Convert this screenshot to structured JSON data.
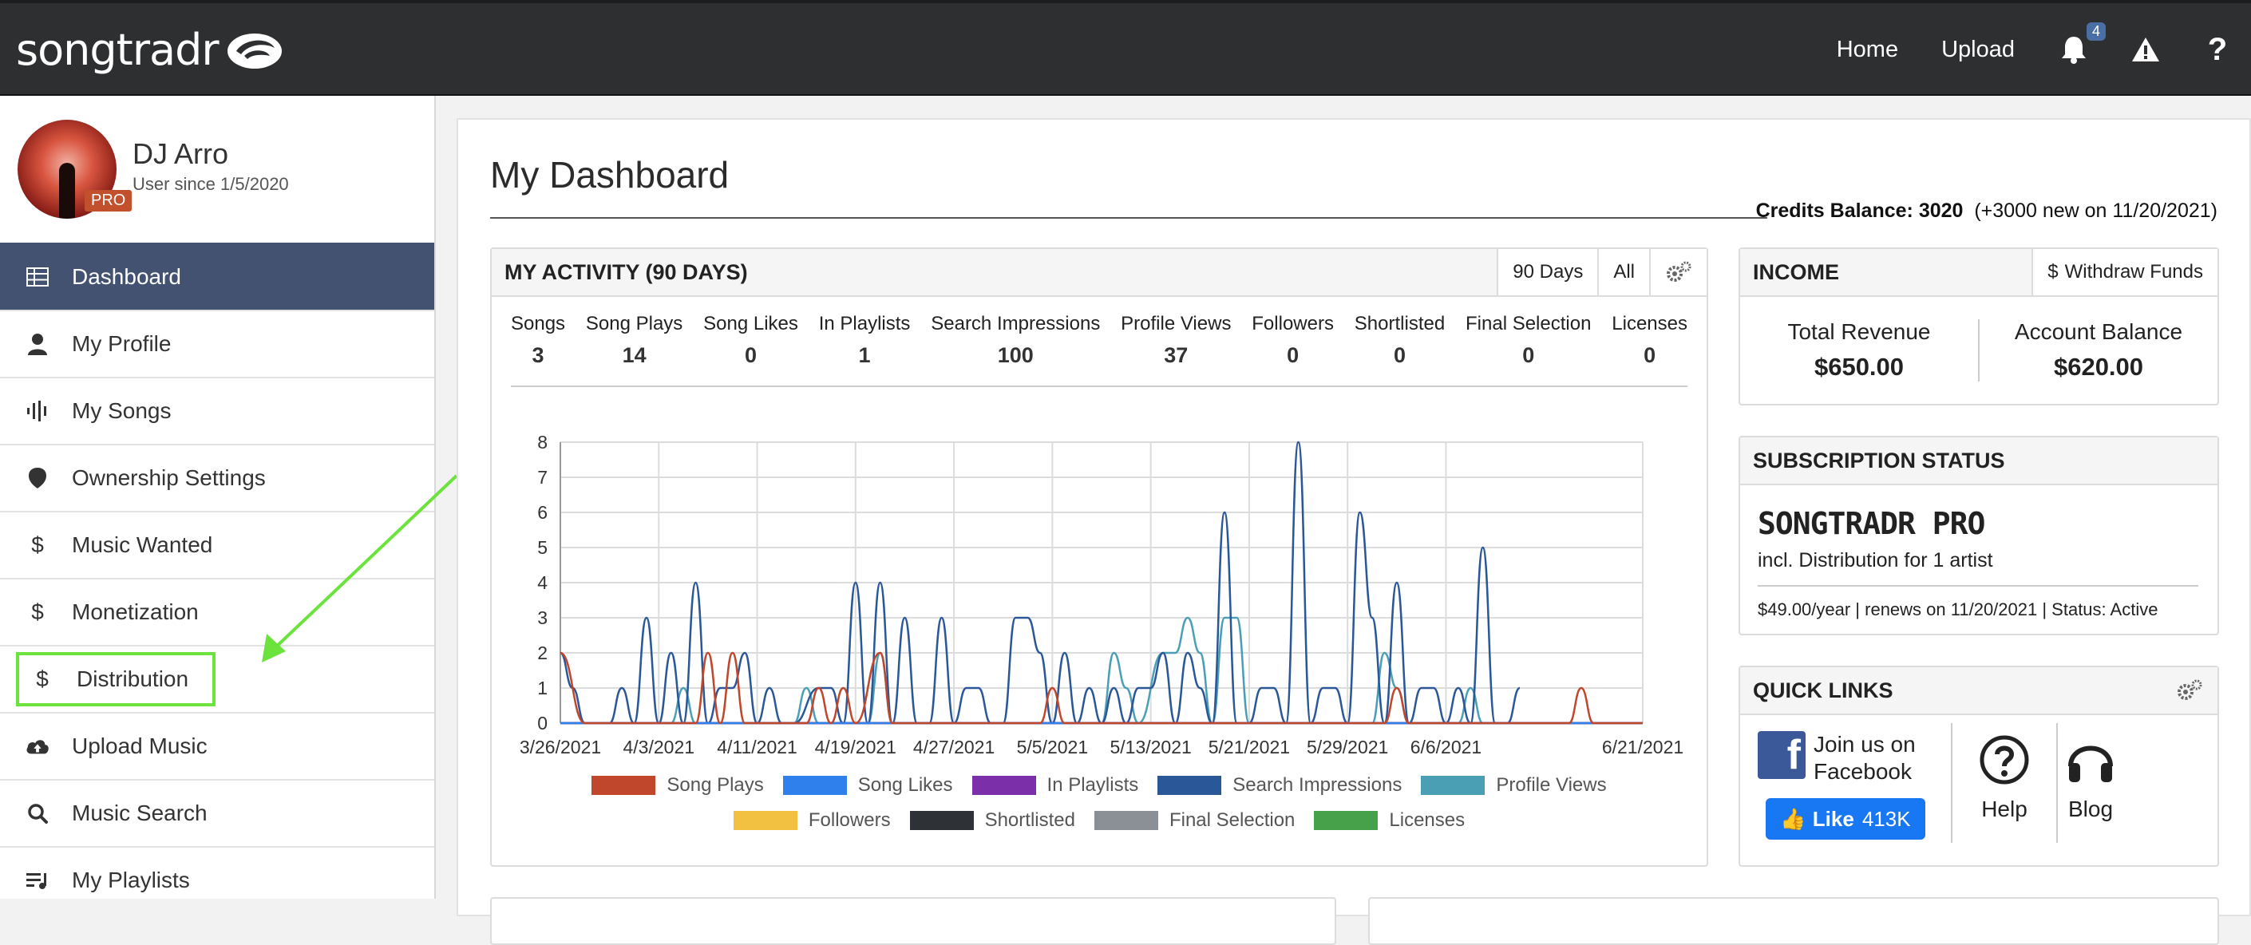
{
  "topbar": {
    "logo_text": "songtradr",
    "nav": {
      "home": "Home",
      "upload": "Upload",
      "notifications_count": "4",
      "help": "?"
    }
  },
  "sidebar": {
    "user": {
      "name": "DJ Arro",
      "since": "User since 1/5/2020",
      "badge": "PRO"
    },
    "items": [
      {
        "label": "Dashboard",
        "icon": "table-icon",
        "active": true
      },
      {
        "label": "My Profile",
        "icon": "user-icon"
      },
      {
        "label": "My Songs",
        "icon": "waveform-icon"
      },
      {
        "label": "Ownership Settings",
        "icon": "shield-icon"
      },
      {
        "label": "Music Wanted",
        "icon": "dollar-icon"
      },
      {
        "label": "Monetization",
        "icon": "dollar-icon"
      },
      {
        "label": "Distribution",
        "icon": "dollar-icon",
        "highlighted": true
      },
      {
        "label": "Upload Music",
        "icon": "cloud-upload-icon"
      },
      {
        "label": "Music Search",
        "icon": "search-icon"
      },
      {
        "label": "My Playlists",
        "icon": "playlist-icon"
      }
    ]
  },
  "dashboard": {
    "title": "My Dashboard",
    "credits_label": "Credits Balance:",
    "credits_value": "3020",
    "credits_note": "(+3000 new on 11/20/2021)"
  },
  "activity": {
    "title": "MY ACTIVITY (90 DAYS)",
    "range_90": "90 Days",
    "range_all": "All",
    "stats": [
      {
        "label": "Songs",
        "value": "3"
      },
      {
        "label": "Song Plays",
        "value": "14"
      },
      {
        "label": "Song Likes",
        "value": "0"
      },
      {
        "label": "In Playlists",
        "value": "1"
      },
      {
        "label": "Search Impressions",
        "value": "100"
      },
      {
        "label": "Profile Views",
        "value": "37"
      },
      {
        "label": "Followers",
        "value": "0"
      },
      {
        "label": "Shortlisted",
        "value": "0"
      },
      {
        "label": "Final Selection",
        "value": "0"
      },
      {
        "label": "Licenses",
        "value": "0"
      }
    ]
  },
  "chart_data": {
    "type": "line",
    "x_ticks": [
      "3/26/2021",
      "4/3/2021",
      "4/11/2021",
      "4/19/2021",
      "4/27/2021",
      "5/5/2021",
      "5/13/2021",
      "5/21/2021",
      "5/29/2021",
      "6/6/2021",
      "6/21/2021"
    ],
    "ylim": [
      0,
      8
    ],
    "y_ticks": [
      "0",
      "1",
      "2",
      "3",
      "4",
      "5",
      "6",
      "7",
      "8"
    ],
    "days": 88,
    "grid": true,
    "legend_position": "bottom",
    "series": [
      {
        "name": "Song Plays",
        "color": "#c0462c",
        "points": [
          [
            0,
            2
          ],
          [
            2,
            0
          ],
          [
            11,
            0
          ],
          [
            12,
            2
          ],
          [
            13,
            0
          ],
          [
            14,
            2
          ],
          [
            15,
            0
          ],
          [
            20,
            0
          ],
          [
            21,
            1
          ],
          [
            22,
            0
          ],
          [
            23,
            1
          ],
          [
            24,
            0
          ],
          [
            26,
            2
          ],
          [
            27,
            0
          ],
          [
            39,
            0
          ],
          [
            40,
            1
          ],
          [
            41,
            0
          ],
          [
            67,
            0
          ],
          [
            68,
            1
          ],
          [
            69,
            0
          ],
          [
            82,
            0
          ],
          [
            83,
            1
          ],
          [
            84,
            0
          ],
          [
            88,
            0
          ]
        ]
      },
      {
        "name": "Song Likes",
        "color": "#2f80ed",
        "points": [
          [
            0,
            0
          ],
          [
            88,
            0
          ]
        ]
      },
      {
        "name": "In Playlists",
        "color": "#7b2fa8",
        "points": [
          [
            0,
            0
          ],
          [
            88,
            0
          ]
        ]
      },
      {
        "name": "Search Impressions",
        "color": "#2a5797",
        "points": [
          [
            0,
            2
          ],
          [
            1,
            1
          ],
          [
            2,
            0
          ],
          [
            4,
            0
          ],
          [
            5,
            1
          ],
          [
            6,
            0
          ],
          [
            7,
            3
          ],
          [
            8,
            0
          ],
          [
            9,
            2
          ],
          [
            10,
            0
          ],
          [
            11,
            4
          ],
          [
            12,
            0
          ],
          [
            13,
            1
          ],
          [
            14,
            1
          ],
          [
            15,
            2
          ],
          [
            16,
            0
          ],
          [
            17,
            1
          ],
          [
            18,
            0
          ],
          [
            19,
            0
          ],
          [
            21,
            1
          ],
          [
            22,
            1
          ],
          [
            23,
            0
          ],
          [
            24,
            4
          ],
          [
            25,
            0
          ],
          [
            26,
            4
          ],
          [
            27,
            0
          ],
          [
            28,
            3
          ],
          [
            29,
            0
          ],
          [
            30,
            0
          ],
          [
            31,
            3
          ],
          [
            32,
            0
          ],
          [
            33,
            1
          ],
          [
            34,
            1
          ],
          [
            35,
            0
          ],
          [
            36,
            0
          ],
          [
            37,
            3
          ],
          [
            38,
            3
          ],
          [
            39,
            2
          ],
          [
            40,
            0
          ],
          [
            41,
            2
          ],
          [
            42,
            0
          ],
          [
            43,
            1
          ],
          [
            44,
            0
          ],
          [
            45,
            1
          ],
          [
            46,
            0
          ],
          [
            47,
            1
          ],
          [
            48,
            1
          ],
          [
            49,
            2
          ],
          [
            50,
            0
          ],
          [
            51,
            2
          ],
          [
            52,
            1
          ],
          [
            53,
            0
          ],
          [
            54,
            6
          ],
          [
            55,
            0
          ],
          [
            56,
            0
          ],
          [
            57,
            1
          ],
          [
            58,
            1
          ],
          [
            59,
            0
          ],
          [
            60,
            8
          ],
          [
            61,
            0
          ],
          [
            62,
            1
          ],
          [
            63,
            1
          ],
          [
            64,
            0
          ],
          [
            65,
            6
          ],
          [
            66,
            3
          ],
          [
            67,
            0
          ],
          [
            68,
            4
          ],
          [
            69,
            0
          ],
          [
            70,
            1
          ],
          [
            71,
            1
          ],
          [
            72,
            0
          ],
          [
            73,
            1
          ],
          [
            74,
            0
          ],
          [
            75,
            5
          ],
          [
            76,
            0
          ],
          [
            77,
            0
          ],
          [
            78,
            1
          ]
        ]
      },
      {
        "name": "Profile Views",
        "color": "#4a9fb5",
        "points": [
          [
            0,
            0
          ],
          [
            9,
            0
          ],
          [
            10,
            1
          ],
          [
            11,
            0
          ],
          [
            19,
            0
          ],
          [
            20,
            1
          ],
          [
            21,
            0
          ],
          [
            25,
            0
          ],
          [
            26,
            2
          ],
          [
            27,
            0
          ],
          [
            44,
            0
          ],
          [
            45,
            2
          ],
          [
            46,
            1
          ],
          [
            47,
            0
          ],
          [
            49,
            2
          ],
          [
            50,
            2
          ],
          [
            51,
            3
          ],
          [
            52,
            2
          ],
          [
            53,
            0
          ],
          [
            54,
            3
          ],
          [
            55,
            3
          ],
          [
            56,
            0
          ],
          [
            66,
            0
          ],
          [
            67,
            2
          ],
          [
            68,
            1
          ],
          [
            69,
            0
          ],
          [
            73,
            0
          ],
          [
            74,
            1
          ],
          [
            75,
            0
          ],
          [
            88,
            0
          ]
        ]
      },
      {
        "name": "Followers",
        "color": "#f2c141",
        "points": [
          [
            0,
            0
          ],
          [
            88,
            0
          ]
        ]
      },
      {
        "name": "Shortlisted",
        "color": "#2e3236",
        "points": [
          [
            0,
            0
          ],
          [
            88,
            0
          ]
        ]
      },
      {
        "name": "Final Selection",
        "color": "#8a9096",
        "points": [
          [
            0,
            0
          ],
          [
            88,
            0
          ]
        ]
      },
      {
        "name": "Licenses",
        "color": "#46a14a",
        "points": [
          [
            0,
            0
          ],
          [
            88,
            0
          ]
        ]
      }
    ]
  },
  "income": {
    "title": "INCOME",
    "withdraw": "Withdraw Funds",
    "total_label": "Total Revenue",
    "total_value": "$650.00",
    "balance_label": "Account Balance",
    "balance_value": "$620.00"
  },
  "subscription": {
    "title": "SUBSCRIPTION STATUS",
    "plan": "SONGTRADR PRO",
    "detail": "incl. Distribution for 1 artist",
    "info": "$49.00/year | renews on 11/20/2021 | Status: Active"
  },
  "quick_links": {
    "title": "QUICK LINKS",
    "facebook_line1": "Join us on",
    "facebook_line2": "Facebook",
    "like_label": "Like",
    "like_count": "413K",
    "help": "Help",
    "blog": "Blog"
  },
  "colors": {
    "accent": "#425270",
    "highlight": "#6be33c",
    "topbar": "#2d2f31"
  }
}
